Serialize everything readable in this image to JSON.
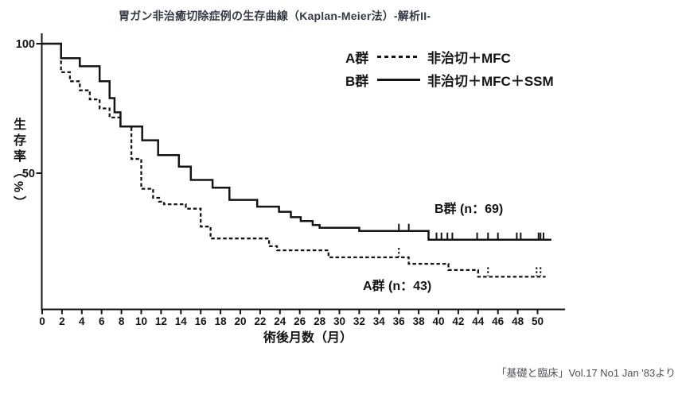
{
  "title": "胃ガン非治癒切除症例の生存曲線（Kaplan-Meier法）-解析II-",
  "source": "「基礎と臨床」Vol.17 No1 Jan '83より",
  "colors": {
    "ink": "#141414",
    "title": "#343946",
    "source": "#4d5058"
  },
  "legend": {
    "items": [
      {
        "group": "A群",
        "treatment": "非治切＋MFC",
        "line_style": "dashed"
      },
      {
        "group": "B群",
        "treatment": "非治切＋MFC＋SSM",
        "line_style": "solid"
      }
    ]
  },
  "annotations": {
    "group_b": "B群 (n：69)",
    "group_a": "A群 (n：43)"
  },
  "chart_data": {
    "type": "line",
    "variant": "kaplan_meier_step_survival",
    "title": "胃ガン非治癒切除症例の生存曲線（Kaplan-Meier法）-解析II-",
    "xlabel": "術後月数（月）",
    "ylabel": "生存率（%）",
    "xlim": [
      0,
      52.5
    ],
    "ylim": [
      0,
      102
    ],
    "xticks": [
      0,
      2,
      4,
      6,
      8,
      10,
      12,
      14,
      16,
      18,
      20,
      22,
      24,
      26,
      28,
      30,
      32,
      34,
      36,
      38,
      40,
      42,
      44,
      46,
      48,
      50
    ],
    "yticks": [
      50,
      100
    ],
    "grid": false,
    "legend_position": "top-right",
    "series": [
      {
        "name": "A群",
        "n": 43,
        "treatment": "非治切＋MFC",
        "line_style": "dashed",
        "points_month_percent": [
          [
            0,
            100
          ],
          [
            1.9,
            89
          ],
          [
            2.8,
            85.5
          ],
          [
            3.8,
            82
          ],
          [
            4.8,
            78.5
          ],
          [
            5.8,
            75
          ],
          [
            6.8,
            71.5
          ],
          [
            7.9,
            68
          ],
          [
            9,
            55.5
          ],
          [
            10,
            44
          ],
          [
            11.2,
            40.5
          ],
          [
            11.8,
            39
          ],
          [
            12.3,
            38
          ],
          [
            14.5,
            36.3
          ],
          [
            16,
            29.4
          ],
          [
            17,
            24.8
          ],
          [
            22.9,
            21.8
          ],
          [
            23.7,
            20.2
          ],
          [
            28.9,
            17.5
          ],
          [
            37,
            15
          ],
          [
            41,
            12.6
          ],
          [
            44,
            10
          ],
          [
            50.8,
            10
          ]
        ],
        "censor_months": [
          36,
          45,
          49.9,
          50.3
        ]
      },
      {
        "name": "B群",
        "n": 69,
        "treatment": "非治切＋MFC＋SSM",
        "line_style": "solid",
        "points_month_percent": [
          [
            0,
            100
          ],
          [
            1.9,
            94.4
          ],
          [
            3.8,
            91.3
          ],
          [
            5.8,
            85.5
          ],
          [
            6.8,
            79
          ],
          [
            7.3,
            73.5
          ],
          [
            7.9,
            68
          ],
          [
            10.1,
            62.7
          ],
          [
            11.7,
            57
          ],
          [
            13.8,
            52.5
          ],
          [
            15,
            47.4
          ],
          [
            17.2,
            44.4
          ],
          [
            18.9,
            39.7
          ],
          [
            21.7,
            37.1
          ],
          [
            23.9,
            35.1
          ],
          [
            25.1,
            33
          ],
          [
            26.1,
            31.5
          ],
          [
            27.3,
            30
          ],
          [
            28,
            28.9
          ],
          [
            32,
            27.7
          ],
          [
            39,
            24.3
          ],
          [
            51.4,
            24.3
          ]
        ],
        "censor_months": [
          36,
          37,
          39.8,
          40.3,
          40.9,
          41.4,
          43.9,
          45,
          46,
          47.9,
          48.3,
          50.1,
          50.3,
          50.6
        ]
      }
    ]
  }
}
